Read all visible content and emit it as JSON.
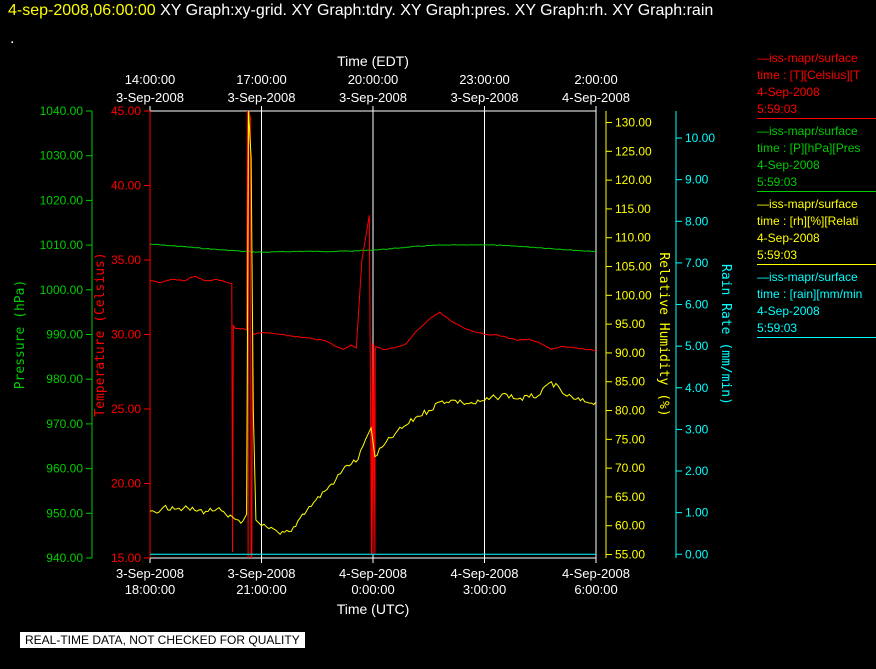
{
  "header": {
    "timestamp": "4-sep-2008,06:00:00",
    "graphs": "XY Graph:xy-grid.  XY Graph:tdry.  XY Graph:pres.  XY Graph:rh.  XY Graph:rain",
    "dot": "."
  },
  "legend": [
    {
      "line1": "—iss-mapr/surface",
      "line2": "time : [T][Celsius][T",
      "line3": "4-Sep-2008",
      "line4": "5:59:03",
      "color": "#ff0000"
    },
    {
      "line1": "—iss-mapr/surface",
      "line2": "time : [P][hPa][Pres",
      "line3": "4-Sep-2008",
      "line4": "5:59:03",
      "color": "#00cc00"
    },
    {
      "line1": "—iss-mapr/surface",
      "line2": "time : [rh][%][Relati",
      "line3": "4-Sep-2008",
      "line4": "5:59:03",
      "color": "#ffff00"
    },
    {
      "line1": "—iss-mapr/surface",
      "line2": "time : [rain][mm/min",
      "line3": "4-Sep-2008",
      "line4": "5:59:03",
      "color": "#00ffff"
    }
  ],
  "quality_note": "REAL-TIME DATA, NOT CHECKED FOR QUALITY",
  "chart_data": {
    "type": "line",
    "grid": true,
    "x_bottom": {
      "label": "Time (UTC)",
      "range_hours": [
        0,
        12
      ],
      "ticks": [
        {
          "h": 0,
          "l1": "3-Sep-2008",
          "l2": "18:00:00"
        },
        {
          "h": 3,
          "l1": "3-Sep-2008",
          "l2": "21:00:00"
        },
        {
          "h": 6,
          "l1": "4-Sep-2008",
          "l2": "0:00:00"
        },
        {
          "h": 9,
          "l1": "4-Sep-2008",
          "l2": "3:00:00"
        },
        {
          "h": 12,
          "l1": "4-Sep-2008",
          "l2": "6:00:00"
        }
      ]
    },
    "x_top": {
      "label": "Time (EDT)",
      "ticks": [
        {
          "h": 0,
          "l1": "14:00:00",
          "l2": "3-Sep-2008"
        },
        {
          "h": 3,
          "l1": "17:00:00",
          "l2": "3-Sep-2008"
        },
        {
          "h": 6,
          "l1": "20:00:00",
          "l2": "3-Sep-2008"
        },
        {
          "h": 9,
          "l1": "23:00:00",
          "l2": "3-Sep-2008"
        },
        {
          "h": 12,
          "l1": "2:00:00",
          "l2": "4-Sep-2008"
        }
      ]
    },
    "axes": [
      {
        "id": "pres",
        "label": "Pressure (hPa)",
        "color": "#00cc00",
        "side": "left-outer",
        "min": 940,
        "max": 1040,
        "ticks": [
          "940.00",
          "950.00",
          "960.00",
          "970.00",
          "980.00",
          "990.00",
          "1000.00",
          "1010.00",
          "1020.00",
          "1030.00",
          "1040.00"
        ]
      },
      {
        "id": "tdry",
        "label": "Temperature (Celsius)",
        "color": "#ff0000",
        "side": "left-inner",
        "min": 15,
        "max": 45,
        "ticks": [
          "15.00",
          "20.00",
          "25.00",
          "30.00",
          "35.00",
          "40.00",
          "45.00"
        ]
      },
      {
        "id": "rh",
        "label": "Relative Humidity (%)",
        "color": "#ffff00",
        "side": "right-inner",
        "min": 54.4,
        "max": 132,
        "ticks": [
          "55.00",
          "60.00",
          "65.00",
          "70.00",
          "75.00",
          "80.00",
          "85.00",
          "90.00",
          "95.00",
          "100.00",
          "105.00",
          "110.00",
          "115.00",
          "120.00",
          "125.00",
          "130.00"
        ]
      },
      {
        "id": "rain",
        "label": "Rain Rate (mm/min)",
        "color": "#00ffff",
        "side": "right-outer",
        "min": -0.09,
        "max": 10.65,
        "ticks": [
          "0.00",
          "1.00",
          "2.00",
          "3.00",
          "4.00",
          "5.00",
          "6.00",
          "7.00",
          "8.00",
          "9.00",
          "10.00"
        ]
      }
    ],
    "series": [
      {
        "axis": "pres",
        "color": "#00cc00",
        "x": [
          0,
          0.5,
          1,
          1.5,
          2,
          2.5,
          3,
          3.5,
          4,
          4.5,
          5,
          5.5,
          6,
          6.5,
          7,
          7.5,
          8,
          8.5,
          9,
          9.5,
          10,
          10.5,
          11,
          11.5,
          12
        ],
        "y": [
          1010.2,
          1009.9,
          1009.6,
          1009.2,
          1008.9,
          1008.6,
          1008.4,
          1008.5,
          1008.6,
          1008.6,
          1008.6,
          1008.7,
          1008.9,
          1009.2,
          1009.6,
          1009.9,
          1010.0,
          1010.0,
          1010.1,
          1009.9,
          1009.7,
          1009.4,
          1009.1,
          1008.8,
          1008.6
        ]
      },
      {
        "axis": "tdry",
        "color": "#ff0000",
        "x": [
          0,
          0.3,
          0.6,
          0.9,
          1.2,
          1.5,
          1.8,
          2.05,
          2.2,
          2.22,
          2.24,
          2.3,
          2.5,
          2.6,
          2.62,
          2.64,
          2.66,
          2.7,
          2.72,
          2.74,
          2.76,
          2.8,
          2.9,
          3.2,
          3.5,
          3.8,
          4.1,
          4.4,
          4.7,
          5.0,
          5.2,
          5.4,
          5.55,
          5.7,
          5.9,
          5.96,
          5.98,
          6.0,
          6.02,
          6.05,
          6.06,
          6.08,
          6.3,
          6.6,
          6.9,
          7.2,
          7.5,
          7.8,
          8.1,
          8.4,
          8.7,
          9.0,
          9.3,
          9.6,
          9.9,
          10.2,
          10.5,
          10.8,
          11.1,
          11.4,
          11.7,
          12.0
        ],
        "y": [
          33.6,
          33.5,
          33.7,
          33.6,
          33.9,
          33.6,
          33.7,
          33.5,
          33.4,
          15.4,
          30.6,
          30.4,
          30.4,
          30.3,
          45,
          15,
          45,
          44.5,
          15,
          15,
          30.1,
          30.0,
          30.1,
          30.1,
          30.0,
          29.9,
          29.8,
          29.7,
          29.6,
          29.2,
          29.0,
          29.3,
          29.1,
          35.0,
          38.0,
          15.2,
          29.4,
          15.2,
          29.4,
          15.3,
          29.0,
          29.2,
          29.0,
          29.1,
          29.4,
          30.3,
          31.0,
          31.5,
          30.9,
          30.5,
          30.2,
          30.0,
          30.0,
          29.8,
          29.6,
          29.7,
          29.4,
          29.0,
          29.2,
          29.1,
          29.0,
          28.9
        ]
      },
      {
        "axis": "rh",
        "color": "#ffff00",
        "x": [
          0,
          0.3,
          0.6,
          0.9,
          1.2,
          1.5,
          1.8,
          2.1,
          2.5,
          2.6,
          2.65,
          2.72,
          2.78,
          2.85,
          3.0,
          3.2,
          3.5,
          3.8,
          4.1,
          4.4,
          4.7,
          5.0,
          5.3,
          5.6,
          5.8,
          5.95,
          6.05,
          6.3,
          6.6,
          6.9,
          7.2,
          7.5,
          7.8,
          8.1,
          8.4,
          8.7,
          9.0,
          9.3,
          9.6,
          9.9,
          10.2,
          10.5,
          10.8,
          11.1,
          11.4,
          11.7,
          12.0
        ],
        "y": [
          62.5,
          62.8,
          63.3,
          63.0,
          62.7,
          62.5,
          62.9,
          61.5,
          60.8,
          62.0,
          132,
          124,
          80,
          61.0,
          60.0,
          59.5,
          58.5,
          59.0,
          62.0,
          64.0,
          66.0,
          68.0,
          70.5,
          71.5,
          75.0,
          77.0,
          72.0,
          74.0,
          76.0,
          77.5,
          79.0,
          80.0,
          81.5,
          81.8,
          81.4,
          81.2,
          81.7,
          82.3,
          82.8,
          82.0,
          82.3,
          82.8,
          85.0,
          83.0,
          82.0,
          81.5,
          81.5
        ]
      },
      {
        "axis": "rain",
        "color": "#00ffff",
        "x": [
          0,
          12
        ],
        "y": [
          0,
          0
        ]
      }
    ]
  }
}
